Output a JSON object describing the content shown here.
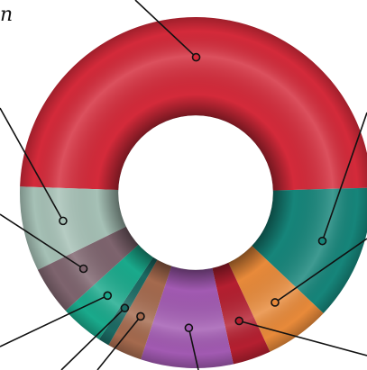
{
  "chart_data": {
    "type": "donut",
    "title": "",
    "visible_text": [
      "n"
    ],
    "series": [
      {
        "value": 49.0,
        "color": "#d42a3a"
      },
      {
        "value": 12.5,
        "color": "#16857a"
      },
      {
        "value": 6.0,
        "color": "#e88a3a"
      },
      {
        "value": 3.5,
        "color": "#b51f30"
      },
      {
        "value": 8.5,
        "color": "#a25ab2"
      },
      {
        "value": 3.2,
        "color": "#a56a4e"
      },
      {
        "value": 1.0,
        "color": "#1b6a63"
      },
      {
        "value": 4.0,
        "color": "#1aaa8c"
      },
      {
        "value": 4.5,
        "color": "#7e646e"
      },
      {
        "value": 7.8,
        "color": "#a6c1b6"
      }
    ],
    "start_angle_deg": 182,
    "inner_radius_ratio": 0.44,
    "legend": "none"
  }
}
